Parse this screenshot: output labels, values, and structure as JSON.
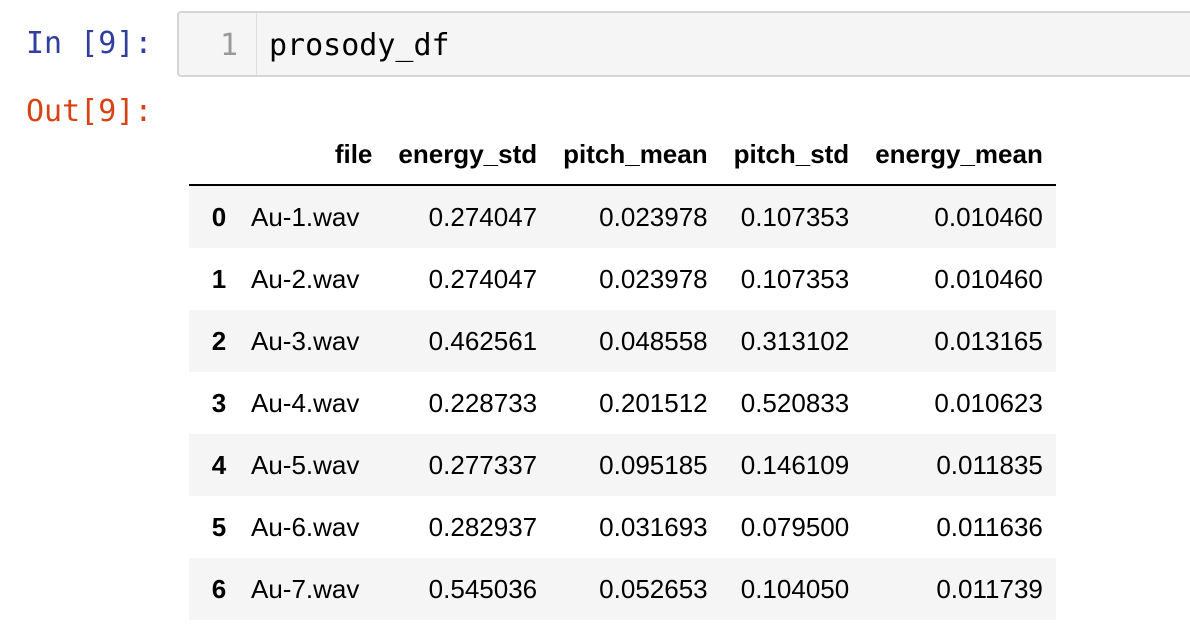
{
  "input_cell": {
    "prompt": "In [9]:",
    "line_number": "1",
    "code": "prosody_df"
  },
  "output_cell": {
    "prompt": "Out[9]:",
    "table": {
      "columns": [
        "file",
        "energy_std",
        "pitch_mean",
        "pitch_std",
        "energy_mean"
      ],
      "rows": [
        {
          "index": "0",
          "file": "Au-1.wav",
          "energy_std": "0.274047",
          "pitch_mean": "0.023978",
          "pitch_std": "0.107353",
          "energy_mean": "0.010460"
        },
        {
          "index": "1",
          "file": "Au-2.wav",
          "energy_std": "0.274047",
          "pitch_mean": "0.023978",
          "pitch_std": "0.107353",
          "energy_mean": "0.010460"
        },
        {
          "index": "2",
          "file": "Au-3.wav",
          "energy_std": "0.462561",
          "pitch_mean": "0.048558",
          "pitch_std": "0.313102",
          "energy_mean": "0.013165"
        },
        {
          "index": "3",
          "file": "Au-4.wav",
          "energy_std": "0.228733",
          "pitch_mean": "0.201512",
          "pitch_std": "0.520833",
          "energy_mean": "0.010623"
        },
        {
          "index": "4",
          "file": "Au-5.wav",
          "energy_std": "0.277337",
          "pitch_mean": "0.095185",
          "pitch_std": "0.146109",
          "energy_mean": "0.011835"
        },
        {
          "index": "5",
          "file": "Au-6.wav",
          "energy_std": "0.282937",
          "pitch_mean": "0.031693",
          "pitch_std": "0.079500",
          "energy_mean": "0.011636"
        },
        {
          "index": "6",
          "file": "Au-7.wav",
          "energy_std": "0.545036",
          "pitch_mean": "0.052653",
          "pitch_std": "0.104050",
          "energy_mean": "0.011739"
        }
      ]
    }
  },
  "colors": {
    "in_prompt": "#303f9f",
    "out_prompt": "#d84315",
    "row_stripe": "#f5f5f5"
  }
}
